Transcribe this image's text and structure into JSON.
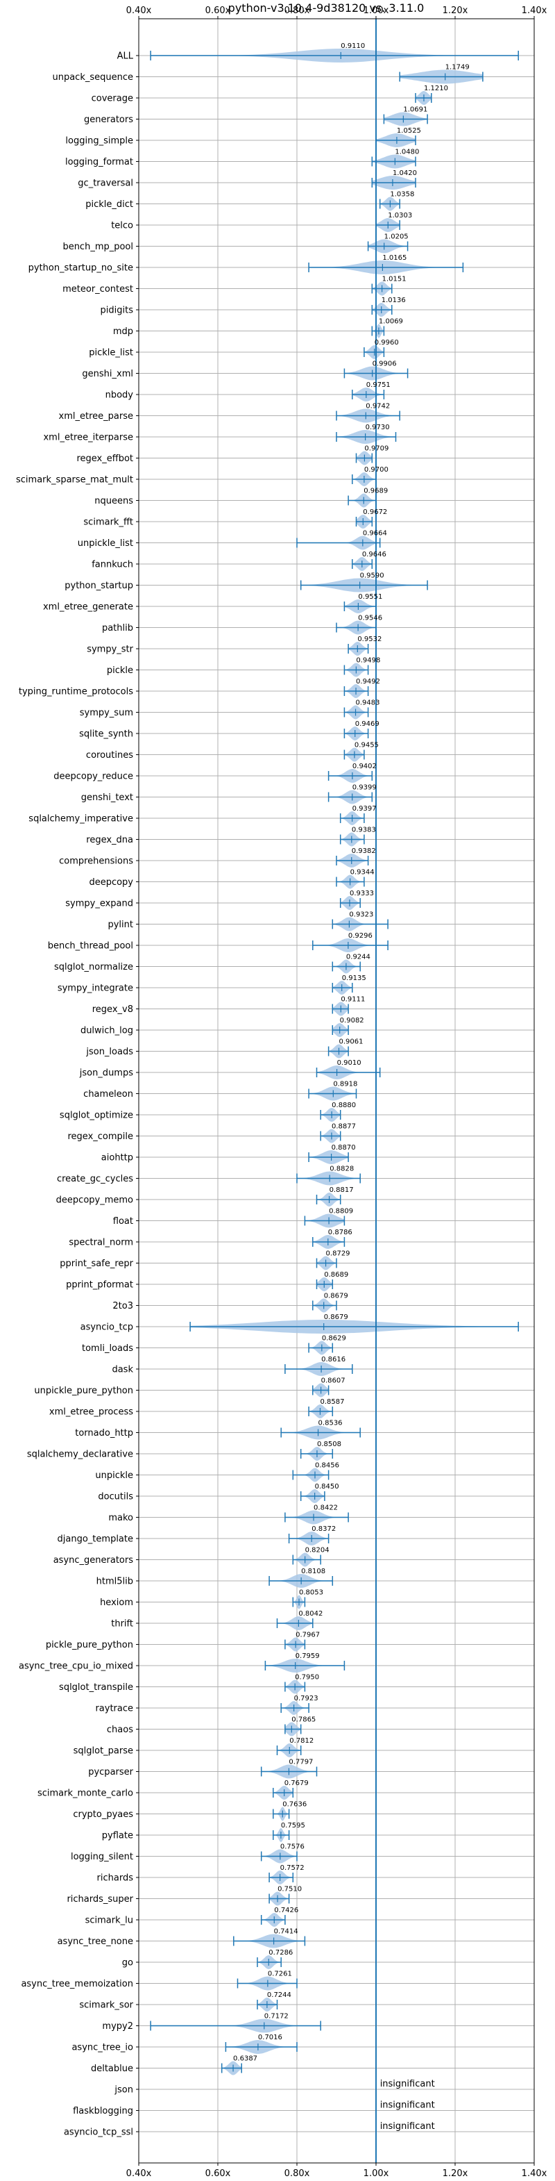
{
  "chart_data": {
    "type": "violin",
    "title": "python-v3.10.4-9d38120 vs. 3.11.0",
    "xlim": [
      0.4,
      1.4
    ],
    "x_ticks": [
      "0.40x",
      "0.60x",
      "0.80x",
      "1.00x",
      "1.20x",
      "1.40x"
    ],
    "reference_line": 1.0,
    "grid": true,
    "colors": {
      "accent": "#1f77b4",
      "violin": "#a9c8e8",
      "grid": "#b0b0b0"
    },
    "benchmarks": [
      {
        "name": "ALL",
        "value": 0.911,
        "label": "0.9110",
        "min": 0.43,
        "max": 1.36,
        "spread": 0.2
      },
      {
        "name": "unpack_sequence",
        "value": 1.1749,
        "label": "1.1749",
        "min": 1.06,
        "max": 1.27,
        "spread": 0.12
      },
      {
        "name": "coverage",
        "value": 1.121,
        "label": "1.1210",
        "min": 1.1,
        "max": 1.14,
        "spread": 0.02
      },
      {
        "name": "generators",
        "value": 1.0691,
        "label": "1.0691",
        "min": 1.02,
        "max": 1.13,
        "spread": 0.05
      },
      {
        "name": "logging_simple",
        "value": 1.0525,
        "label": "1.0525",
        "min": 1.0,
        "max": 1.1,
        "spread": 0.05
      },
      {
        "name": "logging_format",
        "value": 1.048,
        "label": "1.0480",
        "min": 0.99,
        "max": 1.1,
        "spread": 0.05
      },
      {
        "name": "gc_traversal",
        "value": 1.042,
        "label": "1.0420",
        "min": 0.99,
        "max": 1.1,
        "spread": 0.06
      },
      {
        "name": "pickle_dict",
        "value": 1.0358,
        "label": "1.0358",
        "min": 1.01,
        "max": 1.06,
        "spread": 0.02
      },
      {
        "name": "telco",
        "value": 1.0303,
        "label": "1.0303",
        "min": 1.0,
        "max": 1.06,
        "spread": 0.03
      },
      {
        "name": "bench_mp_pool",
        "value": 1.0205,
        "label": "1.0205",
        "min": 0.98,
        "max": 1.08,
        "spread": 0.04
      },
      {
        "name": "python_startup_no_site",
        "value": 1.0165,
        "label": "1.0165",
        "min": 0.83,
        "max": 1.22,
        "spread": 0.1
      },
      {
        "name": "meteor_contest",
        "value": 1.0151,
        "label": "1.0151",
        "min": 0.99,
        "max": 1.04,
        "spread": 0.02
      },
      {
        "name": "pidigits",
        "value": 1.0136,
        "label": "1.0136",
        "min": 0.99,
        "max": 1.04,
        "spread": 0.02
      },
      {
        "name": "mdp",
        "value": 1.0069,
        "label": "1.0069",
        "min": 0.99,
        "max": 1.02,
        "spread": 0.01
      },
      {
        "name": "pickle_list",
        "value": 0.996,
        "label": "0.9960",
        "min": 0.97,
        "max": 1.02,
        "spread": 0.02
      },
      {
        "name": "genshi_xml",
        "value": 0.9906,
        "label": "0.9906",
        "min": 0.92,
        "max": 1.08,
        "spread": 0.05
      },
      {
        "name": "nbody",
        "value": 0.9751,
        "label": "0.9751",
        "min": 0.94,
        "max": 1.02,
        "spread": 0.03
      },
      {
        "name": "xml_etree_parse",
        "value": 0.9742,
        "label": "0.9742",
        "min": 0.9,
        "max": 1.06,
        "spread": 0.05
      },
      {
        "name": "xml_etree_iterparse",
        "value": 0.973,
        "label": "0.9730",
        "min": 0.9,
        "max": 1.05,
        "spread": 0.05
      },
      {
        "name": "regex_effbot",
        "value": 0.9709,
        "label": "0.9709",
        "min": 0.95,
        "max": 0.99,
        "spread": 0.02
      },
      {
        "name": "scimark_sparse_mat_mult",
        "value": 0.97,
        "label": "0.9700",
        "min": 0.94,
        "max": 1.0,
        "spread": 0.02
      },
      {
        "name": "nqueens",
        "value": 0.9689,
        "label": "0.9689",
        "min": 0.93,
        "max": 1.0,
        "spread": 0.02
      },
      {
        "name": "scimark_fft",
        "value": 0.9672,
        "label": "0.9672",
        "min": 0.95,
        "max": 0.99,
        "spread": 0.02
      },
      {
        "name": "unpickle_list",
        "value": 0.9664,
        "label": "0.9664",
        "min": 0.8,
        "max": 1.01,
        "spread": 0.03
      },
      {
        "name": "fannkuch",
        "value": 0.9646,
        "label": "0.9646",
        "min": 0.94,
        "max": 0.99,
        "spread": 0.02
      },
      {
        "name": "python_startup",
        "value": 0.959,
        "label": "0.9590",
        "min": 0.81,
        "max": 1.13,
        "spread": 0.1
      },
      {
        "name": "xml_etree_generate",
        "value": 0.9551,
        "label": "0.9551",
        "min": 0.92,
        "max": 1.0,
        "spread": 0.03
      },
      {
        "name": "pathlib",
        "value": 0.9546,
        "label": "0.9546",
        "min": 0.9,
        "max": 1.0,
        "spread": 0.03
      },
      {
        "name": "sympy_str",
        "value": 0.9532,
        "label": "0.9532",
        "min": 0.93,
        "max": 0.98,
        "spread": 0.02
      },
      {
        "name": "pickle",
        "value": 0.9498,
        "label": "0.9498",
        "min": 0.92,
        "max": 0.98,
        "spread": 0.02
      },
      {
        "name": "typing_runtime_protocols",
        "value": 0.9492,
        "label": "0.9492",
        "min": 0.92,
        "max": 0.98,
        "spread": 0.02
      },
      {
        "name": "sympy_sum",
        "value": 0.9483,
        "label": "0.9483",
        "min": 0.92,
        "max": 0.98,
        "spread": 0.02
      },
      {
        "name": "sqlite_synth",
        "value": 0.9469,
        "label": "0.9469",
        "min": 0.92,
        "max": 0.98,
        "spread": 0.02
      },
      {
        "name": "coroutines",
        "value": 0.9455,
        "label": "0.9455",
        "min": 0.92,
        "max": 0.97,
        "spread": 0.02
      },
      {
        "name": "deepcopy_reduce",
        "value": 0.9402,
        "label": "0.9402",
        "min": 0.88,
        "max": 0.99,
        "spread": 0.03
      },
      {
        "name": "genshi_text",
        "value": 0.9399,
        "label": "0.9399",
        "min": 0.88,
        "max": 0.99,
        "spread": 0.03
      },
      {
        "name": "sqlalchemy_imperative",
        "value": 0.9397,
        "label": "0.9397",
        "min": 0.91,
        "max": 0.97,
        "spread": 0.02
      },
      {
        "name": "regex_dna",
        "value": 0.9383,
        "label": "0.9383",
        "min": 0.91,
        "max": 0.97,
        "spread": 0.02
      },
      {
        "name": "comprehensions",
        "value": 0.9382,
        "label": "0.9382",
        "min": 0.9,
        "max": 0.98,
        "spread": 0.03
      },
      {
        "name": "deepcopy",
        "value": 0.9344,
        "label": "0.9344",
        "min": 0.9,
        "max": 0.97,
        "spread": 0.02
      },
      {
        "name": "sympy_expand",
        "value": 0.9333,
        "label": "0.9333",
        "min": 0.91,
        "max": 0.96,
        "spread": 0.02
      },
      {
        "name": "pylint",
        "value": 0.9323,
        "label": "0.9323",
        "min": 0.89,
        "max": 1.03,
        "spread": 0.03
      },
      {
        "name": "bench_thread_pool",
        "value": 0.9296,
        "label": "0.9296",
        "min": 0.84,
        "max": 1.03,
        "spread": 0.04
      },
      {
        "name": "sqlglot_normalize",
        "value": 0.9244,
        "label": "0.9244",
        "min": 0.89,
        "max": 0.96,
        "spread": 0.02
      },
      {
        "name": "sympy_integrate",
        "value": 0.9135,
        "label": "0.9135",
        "min": 0.89,
        "max": 0.94,
        "spread": 0.02
      },
      {
        "name": "regex_v8",
        "value": 0.9111,
        "label": "0.9111",
        "min": 0.89,
        "max": 0.93,
        "spread": 0.02
      },
      {
        "name": "dulwich_log",
        "value": 0.9082,
        "label": "0.9082",
        "min": 0.89,
        "max": 0.93,
        "spread": 0.02
      },
      {
        "name": "json_loads",
        "value": 0.9061,
        "label": "0.9061",
        "min": 0.88,
        "max": 0.93,
        "spread": 0.02
      },
      {
        "name": "json_dumps",
        "value": 0.901,
        "label": "0.9010",
        "min": 0.85,
        "max": 1.01,
        "spread": 0.04
      },
      {
        "name": "chameleon",
        "value": 0.8918,
        "label": "0.8918",
        "min": 0.83,
        "max": 0.95,
        "spread": 0.04
      },
      {
        "name": "sqlglot_optimize",
        "value": 0.888,
        "label": "0.8880",
        "min": 0.86,
        "max": 0.91,
        "spread": 0.02
      },
      {
        "name": "regex_compile",
        "value": 0.8877,
        "label": "0.8877",
        "min": 0.86,
        "max": 0.91,
        "spread": 0.02
      },
      {
        "name": "aiohttp",
        "value": 0.887,
        "label": "0.8870",
        "min": 0.83,
        "max": 0.93,
        "spread": 0.04
      },
      {
        "name": "create_gc_cycles",
        "value": 0.8828,
        "label": "0.8828",
        "min": 0.8,
        "max": 0.96,
        "spread": 0.05
      },
      {
        "name": "deepcopy_memo",
        "value": 0.8817,
        "label": "0.8817",
        "min": 0.85,
        "max": 0.91,
        "spread": 0.02
      },
      {
        "name": "float",
        "value": 0.8809,
        "label": "0.8809",
        "min": 0.82,
        "max": 0.92,
        "spread": 0.04
      },
      {
        "name": "spectral_norm",
        "value": 0.8786,
        "label": "0.8786",
        "min": 0.84,
        "max": 0.92,
        "spread": 0.03
      },
      {
        "name": "pprint_safe_repr",
        "value": 0.8729,
        "label": "0.8729",
        "min": 0.85,
        "max": 0.9,
        "spread": 0.02
      },
      {
        "name": "pprint_pformat",
        "value": 0.8689,
        "label": "0.8689",
        "min": 0.85,
        "max": 0.89,
        "spread": 0.02
      },
      {
        "name": "2to3",
        "value": 0.8679,
        "label": "0.8679",
        "min": 0.84,
        "max": 0.9,
        "spread": 0.02
      },
      {
        "name": "asyncio_tcp",
        "value": 0.8679,
        "label": "0.8679",
        "min": 0.53,
        "max": 1.36,
        "spread": 0.3
      },
      {
        "name": "tomli_loads",
        "value": 0.8629,
        "label": "0.8629",
        "min": 0.83,
        "max": 0.89,
        "spread": 0.02
      },
      {
        "name": "dask",
        "value": 0.8616,
        "label": "0.8616",
        "min": 0.77,
        "max": 0.94,
        "spread": 0.04
      },
      {
        "name": "unpickle_pure_python",
        "value": 0.8607,
        "label": "0.8607",
        "min": 0.84,
        "max": 0.88,
        "spread": 0.02
      },
      {
        "name": "xml_etree_process",
        "value": 0.8587,
        "label": "0.8587",
        "min": 0.83,
        "max": 0.89,
        "spread": 0.02
      },
      {
        "name": "tornado_http",
        "value": 0.8536,
        "label": "0.8536",
        "min": 0.76,
        "max": 0.96,
        "spread": 0.05
      },
      {
        "name": "sqlalchemy_declarative",
        "value": 0.8508,
        "label": "0.8508",
        "min": 0.81,
        "max": 0.89,
        "spread": 0.02
      },
      {
        "name": "unpickle",
        "value": 0.8456,
        "label": "0.8456",
        "min": 0.79,
        "max": 0.88,
        "spread": 0.02
      },
      {
        "name": "docutils",
        "value": 0.845,
        "label": "0.8450",
        "min": 0.81,
        "max": 0.87,
        "spread": 0.02
      },
      {
        "name": "mako",
        "value": 0.8422,
        "label": "0.8422",
        "min": 0.77,
        "max": 0.93,
        "spread": 0.04
      },
      {
        "name": "django_template",
        "value": 0.8372,
        "label": "0.8372",
        "min": 0.78,
        "max": 0.88,
        "spread": 0.03
      },
      {
        "name": "async_generators",
        "value": 0.8204,
        "label": "0.8204",
        "min": 0.79,
        "max": 0.86,
        "spread": 0.02
      },
      {
        "name": "html5lib",
        "value": 0.8108,
        "label": "0.8108",
        "min": 0.73,
        "max": 0.89,
        "spread": 0.04
      },
      {
        "name": "hexiom",
        "value": 0.8053,
        "label": "0.8053",
        "min": 0.79,
        "max": 0.82,
        "spread": 0.01
      },
      {
        "name": "thrift",
        "value": 0.8042,
        "label": "0.8042",
        "min": 0.75,
        "max": 0.84,
        "spread": 0.03
      },
      {
        "name": "pickle_pure_python",
        "value": 0.7967,
        "label": "0.7967",
        "min": 0.77,
        "max": 0.82,
        "spread": 0.02
      },
      {
        "name": "async_tree_cpu_io_mixed",
        "value": 0.7959,
        "label": "0.7959",
        "min": 0.72,
        "max": 0.92,
        "spread": 0.05
      },
      {
        "name": "sqlglot_transpile",
        "value": 0.795,
        "label": "0.7950",
        "min": 0.77,
        "max": 0.82,
        "spread": 0.02
      },
      {
        "name": "raytrace",
        "value": 0.7923,
        "label": "0.7923",
        "min": 0.76,
        "max": 0.83,
        "spread": 0.02
      },
      {
        "name": "chaos",
        "value": 0.7865,
        "label": "0.7865",
        "min": 0.77,
        "max": 0.81,
        "spread": 0.02
      },
      {
        "name": "sqlglot_parse",
        "value": 0.7812,
        "label": "0.7812",
        "min": 0.75,
        "max": 0.81,
        "spread": 0.02
      },
      {
        "name": "pycparser",
        "value": 0.7797,
        "label": "0.7797",
        "min": 0.71,
        "max": 0.85,
        "spread": 0.04
      },
      {
        "name": "scimark_monte_carlo",
        "value": 0.7679,
        "label": "0.7679",
        "min": 0.74,
        "max": 0.79,
        "spread": 0.02
      },
      {
        "name": "crypto_pyaes",
        "value": 0.7636,
        "label": "0.7636",
        "min": 0.74,
        "max": 0.78,
        "spread": 0.01
      },
      {
        "name": "pyflate",
        "value": 0.7595,
        "label": "0.7595",
        "min": 0.74,
        "max": 0.78,
        "spread": 0.01
      },
      {
        "name": "logging_silent",
        "value": 0.7576,
        "label": "0.7576",
        "min": 0.71,
        "max": 0.8,
        "spread": 0.03
      },
      {
        "name": "richards",
        "value": 0.7572,
        "label": "0.7572",
        "min": 0.73,
        "max": 0.79,
        "spread": 0.02
      },
      {
        "name": "richards_super",
        "value": 0.751,
        "label": "0.7510",
        "min": 0.73,
        "max": 0.78,
        "spread": 0.02
      },
      {
        "name": "scimark_lu",
        "value": 0.7426,
        "label": "0.7426",
        "min": 0.71,
        "max": 0.77,
        "spread": 0.02
      },
      {
        "name": "async_tree_none",
        "value": 0.7414,
        "label": "0.7414",
        "min": 0.64,
        "max": 0.82,
        "spread": 0.05
      },
      {
        "name": "go",
        "value": 0.7286,
        "label": "0.7286",
        "min": 0.7,
        "max": 0.76,
        "spread": 0.02
      },
      {
        "name": "async_tree_memoization",
        "value": 0.7261,
        "label": "0.7261",
        "min": 0.65,
        "max": 0.8,
        "spread": 0.04
      },
      {
        "name": "scimark_sor",
        "value": 0.7244,
        "label": "0.7244",
        "min": 0.7,
        "max": 0.75,
        "spread": 0.02
      },
      {
        "name": "mypy2",
        "value": 0.7172,
        "label": "0.7172",
        "min": 0.43,
        "max": 0.86,
        "spread": 0.06
      },
      {
        "name": "async_tree_io",
        "value": 0.7016,
        "label": "0.7016",
        "min": 0.62,
        "max": 0.8,
        "spread": 0.05
      },
      {
        "name": "deltablue",
        "value": 0.6387,
        "label": "0.6387",
        "min": 0.61,
        "max": 0.66,
        "spread": 0.02
      },
      {
        "name": "json",
        "insignificant": true,
        "label": "insignificant"
      },
      {
        "name": "flaskblogging",
        "insignificant": true,
        "label": "insignificant"
      },
      {
        "name": "asyncio_tcp_ssl",
        "insignificant": true,
        "label": "insignificant"
      }
    ]
  }
}
